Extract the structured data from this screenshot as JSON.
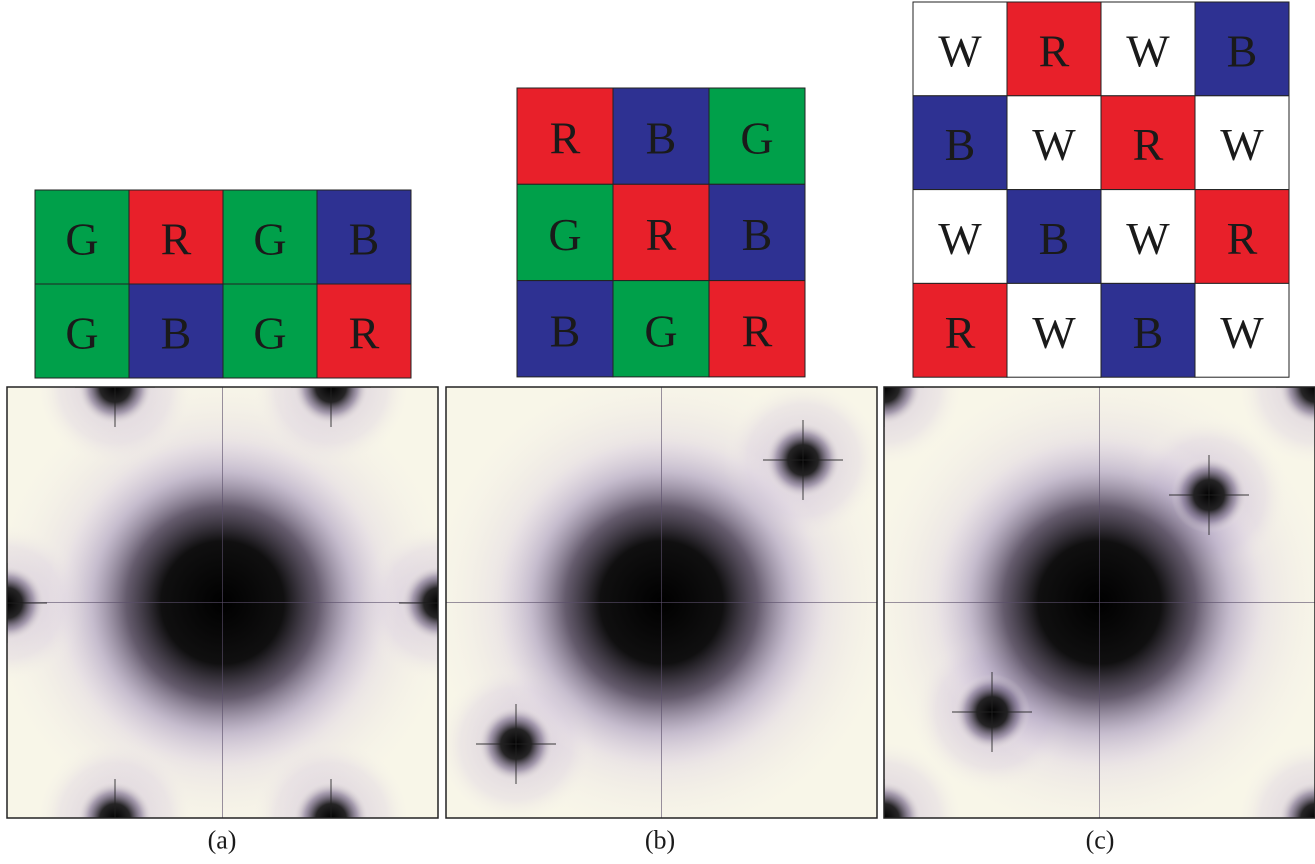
{
  "panels": [
    {
      "label": "(a)",
      "grid": [
        [
          {
            "text": "G",
            "color": "#00a04a"
          },
          {
            "text": "R",
            "color": "#e8202a"
          },
          {
            "text": "G",
            "color": "#00a04a"
          },
          {
            "text": "B",
            "color": "#2e3192"
          }
        ],
        [
          {
            "text": "G",
            "color": "#00a04a"
          },
          {
            "text": "B",
            "color": "#2e3192"
          },
          {
            "text": "G",
            "color": "#00a04a"
          },
          {
            "text": "R",
            "color": "#e8202a"
          }
        ]
      ]
    },
    {
      "label": "(b)",
      "grid": [
        [
          {
            "text": "R",
            "color": "#e8202a"
          },
          {
            "text": "B",
            "color": "#2e3192"
          },
          {
            "text": "G",
            "color": "#00a04a"
          }
        ],
        [
          {
            "text": "G",
            "color": "#00a04a"
          },
          {
            "text": "R",
            "color": "#e8202a"
          },
          {
            "text": "B",
            "color": "#2e3192"
          }
        ],
        [
          {
            "text": "B",
            "color": "#2e3192"
          },
          {
            "text": "G",
            "color": "#00a04a"
          },
          {
            "text": "R",
            "color": "#e8202a"
          }
        ]
      ]
    },
    {
      "label": "(c)",
      "grid": [
        [
          {
            "text": "W",
            "color": "#ffffff"
          },
          {
            "text": "R",
            "color": "#e8202a"
          },
          {
            "text": "W",
            "color": "#ffffff"
          },
          {
            "text": "B",
            "color": "#2e3192"
          }
        ],
        [
          {
            "text": "B",
            "color": "#2e3192"
          },
          {
            "text": "W",
            "color": "#ffffff"
          },
          {
            "text": "R",
            "color": "#e8202a"
          },
          {
            "text": "W",
            "color": "#ffffff"
          }
        ],
        [
          {
            "text": "W",
            "color": "#ffffff"
          },
          {
            "text": "B",
            "color": "#2e3192"
          },
          {
            "text": "W",
            "color": "#ffffff"
          },
          {
            "text": "R",
            "color": "#e8202a"
          }
        ],
        [
          {
            "text": "R",
            "color": "#e8202a"
          },
          {
            "text": "W",
            "color": "#ffffff"
          },
          {
            "text": "B",
            "color": "#2e3192"
          },
          {
            "text": "W",
            "color": "#ffffff"
          }
        ]
      ]
    }
  ]
}
